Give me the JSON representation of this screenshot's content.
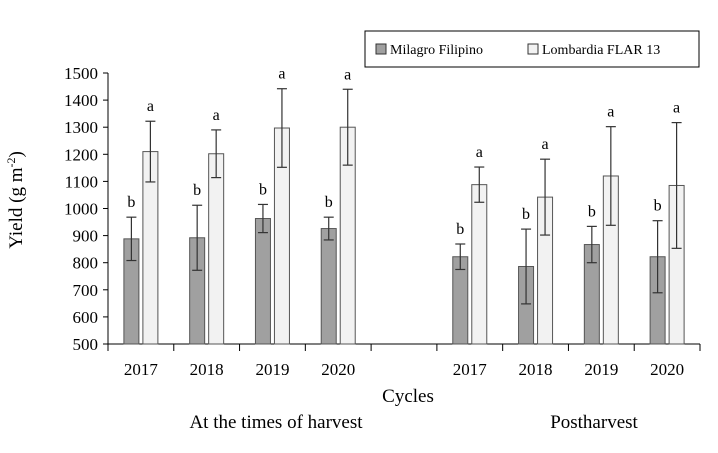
{
  "chart_data": {
    "type": "bar",
    "xlabel": "Cycles",
    "ylabel": "Yield (g m",
    "ylabel_sup": "-2",
    "ylabel_close": ")",
    "ylim": [
      500,
      1500
    ],
    "yticks": [
      500,
      600,
      700,
      800,
      900,
      1000,
      1100,
      1200,
      1300,
      1400,
      1500
    ],
    "grid": false,
    "legend_position": "top-right",
    "legend_colors": [
      "#a0a0a0",
      "#f2f2f2"
    ],
    "groups": [
      {
        "label": "At the times of harvest",
        "categories": [
          "2017",
          "2018",
          "2019",
          "2020"
        ],
        "series": [
          {
            "name": "Milagro Filipino",
            "values": [
              888,
              892,
              963,
              926
            ],
            "errors": [
              80,
              120,
              52,
              42
            ],
            "letters": [
              "b",
              "b",
              "b",
              "b"
            ]
          },
          {
            "name": "Lombardia FLAR 13",
            "values": [
              1210,
              1202,
              1297,
              1300
            ],
            "errors": [
              112,
              88,
              145,
              140
            ],
            "letters": [
              "a",
              "a",
              "a",
              "a"
            ]
          }
        ]
      },
      {
        "label": "Postharvest",
        "categories": [
          "2017",
          "2018",
          "2019",
          "2020"
        ],
        "series": [
          {
            "name": "Milagro Filipino",
            "values": [
              822,
              786,
              867,
              822
            ],
            "errors": [
              47,
              138,
              67,
              133
            ],
            "letters": [
              "b",
              "b",
              "b",
              "b"
            ]
          },
          {
            "name": "Lombardia FLAR 13",
            "values": [
              1088,
              1042,
              1120,
              1085
            ],
            "errors": [
              65,
              140,
              182,
              232
            ],
            "letters": [
              "a",
              "a",
              "a",
              "a"
            ]
          }
        ]
      }
    ]
  }
}
